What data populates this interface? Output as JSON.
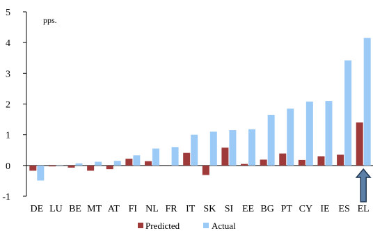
{
  "chart_data": {
    "type": "bar",
    "unit_label": "pps.",
    "categories": [
      "DE",
      "LU",
      "BE",
      "MT",
      "AT",
      "FI",
      "NL",
      "FR",
      "IT",
      "SK",
      "SI",
      "EE",
      "BG",
      "PT",
      "CY",
      "IE",
      "ES",
      "EL"
    ],
    "series": [
      {
        "name": "Predicted",
        "color": "#9e3a3a",
        "values": [
          -0.17,
          -0.03,
          -0.07,
          -0.17,
          -0.12,
          0.22,
          0.14,
          0.0,
          0.41,
          -0.31,
          0.58,
          0.05,
          0.19,
          0.39,
          0.18,
          0.3,
          0.35,
          1.4
        ]
      },
      {
        "name": "Actual",
        "color": "#9ccaf7",
        "values": [
          -0.49,
          0.01,
          0.07,
          0.12,
          0.15,
          0.33,
          0.55,
          0.6,
          1.0,
          1.1,
          1.15,
          1.18,
          1.65,
          1.85,
          2.08,
          2.1,
          3.42,
          4.15
        ]
      }
    ],
    "ylim": [
      -1,
      5
    ],
    "yticks": [
      -1,
      0,
      1,
      2,
      3,
      4,
      5
    ],
    "grid": false,
    "legend_position": "bottom-center",
    "annotation": {
      "type": "arrow-up",
      "category": "EL",
      "icon": "up-arrow-icon",
      "color": "#5b7fa6"
    }
  }
}
